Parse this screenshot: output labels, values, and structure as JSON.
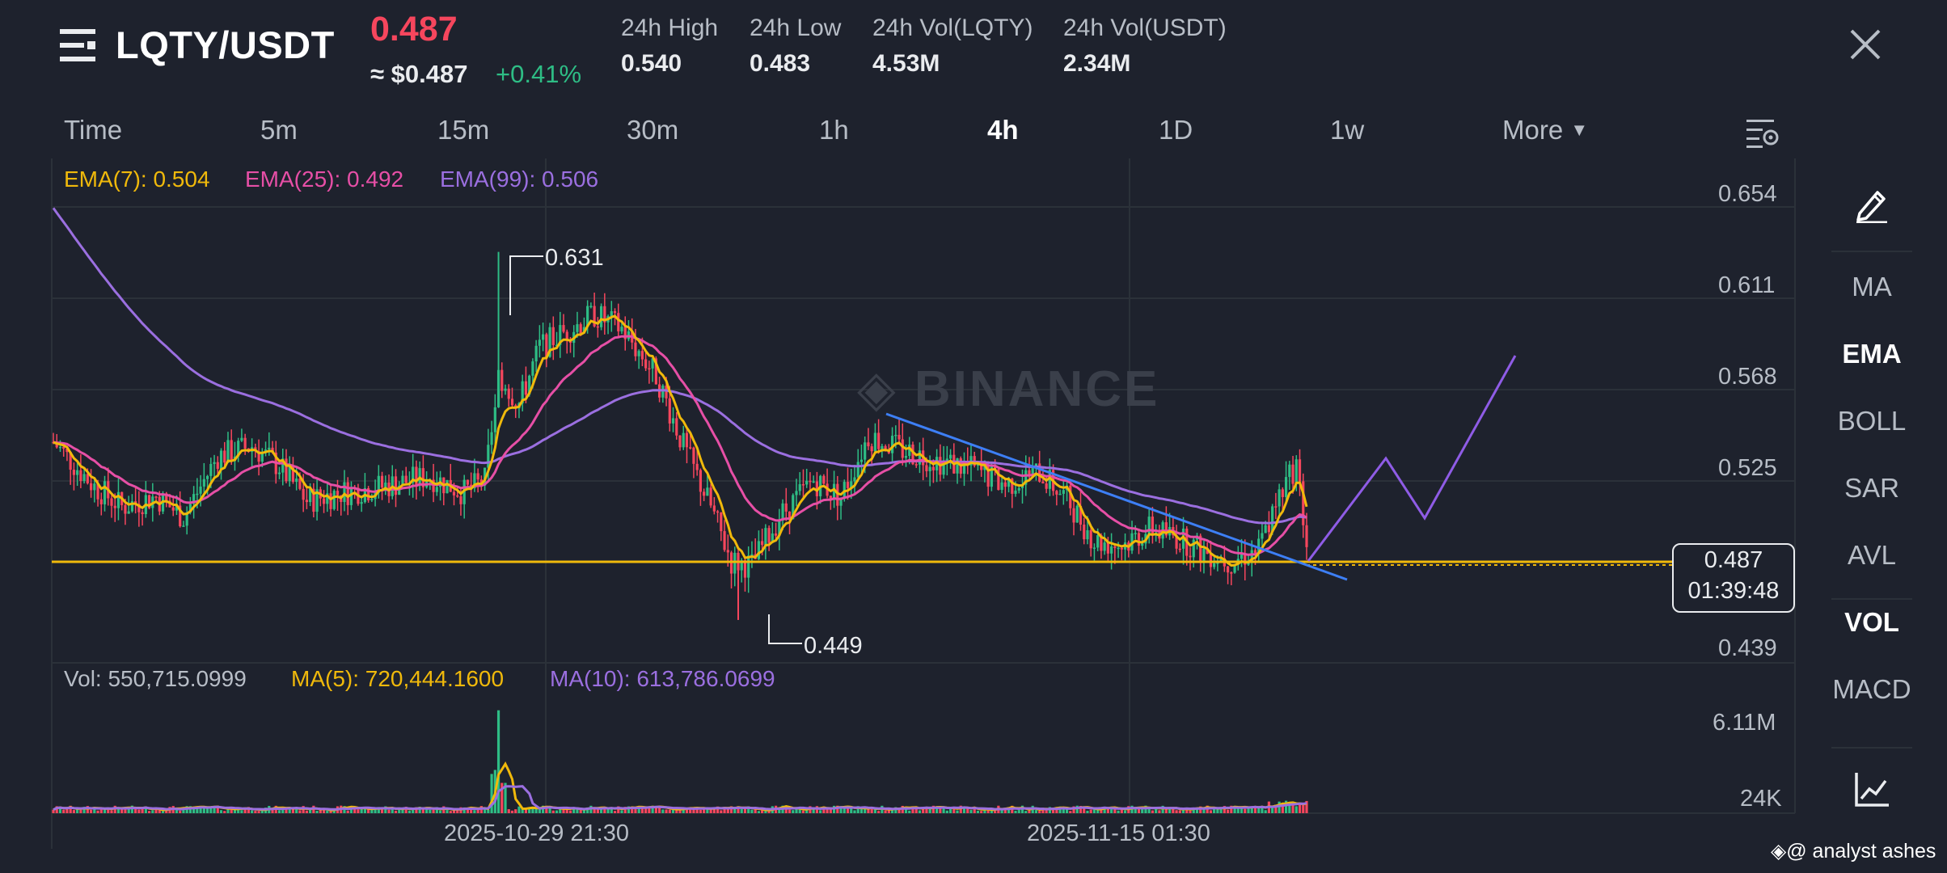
{
  "header": {
    "symbol": "LQTY/USDT",
    "last_price": "0.487",
    "usd_price": "≈ $0.487",
    "change": "+0.41%",
    "stats": [
      {
        "label": "24h High",
        "value": "0.540"
      },
      {
        "label": "24h Low",
        "value": "0.483"
      },
      {
        "label": "24h Vol(LQTY)",
        "value": "4.53M"
      },
      {
        "label": "24h Vol(USDT)",
        "value": "2.34M"
      }
    ]
  },
  "timeframes": [
    "Time",
    "5m",
    "15m",
    "30m",
    "1h",
    "4h",
    "1D",
    "1w"
  ],
  "active_timeframe": "4h",
  "more_label": "More",
  "ema_legend": {
    "ema7": "EMA(7): 0.504",
    "ema25": "EMA(25): 0.492",
    "ema99": "EMA(99): 0.506"
  },
  "vol_legend": {
    "vol": "Vol: 550,715.0999",
    "ma5": "MA(5): 720,444.1600",
    "ma10": "MA(10): 613,786.0699"
  },
  "price_axis": [
    "0.654",
    "0.611",
    "0.568",
    "0.525",
    "0.439"
  ],
  "volume_axis": [
    "6.11M",
    "24K"
  ],
  "time_axis": [
    "2025-10-29 21:30",
    "2025-11-15 01:30"
  ],
  "annotations": {
    "high_mark": "0.631",
    "low_mark": "0.449"
  },
  "current_price_box": {
    "price": "0.487",
    "countdown": "01:39:48"
  },
  "watermark": "BINANCE",
  "side_toolbar": [
    "MA",
    "EMA",
    "BOLL",
    "SAR",
    "AVL",
    "VOL",
    "MACD"
  ],
  "side_active": [
    "EMA",
    "VOL"
  ],
  "credit": "@ analyst ashes",
  "colors": {
    "background": "#1e222d",
    "up": "#2ebd85",
    "down": "#f6465d",
    "ema7": "#f0b90b",
    "ema25": "#e64fa6",
    "ema99": "#9b6fe0",
    "trendline": "#3d7ff5",
    "projection": "#8f5ce6",
    "support": "#f0b90b"
  },
  "chart_data": {
    "type": "candlestick",
    "price_range": [
      0.435,
      0.66
    ],
    "current_price": 0.487,
    "support_level": 0.487,
    "period_high": 0.631,
    "period_low": 0.449,
    "ema_values": {
      "ema7": 0.504,
      "ema25": 0.492,
      "ema99": 0.506
    },
    "volume_range": [
      0,
      6110000
    ],
    "current_volume": 550715.0999,
    "volume_ma5": 720444.16,
    "volume_ma10": 613786.0699,
    "timeframe": "4h"
  }
}
